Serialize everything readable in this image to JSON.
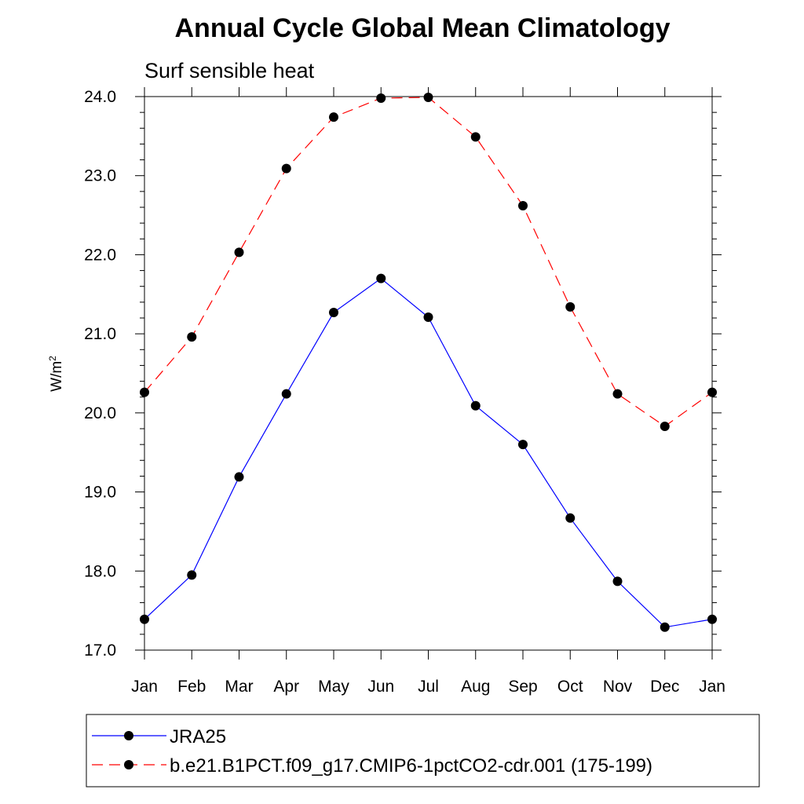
{
  "chart_data": {
    "type": "line",
    "title": "Annual Cycle Global Mean Climatology",
    "subtitle": "Surf sensible heat",
    "ylabel": "W/m",
    "ylabel_superscript": "2",
    "xlabel": "",
    "categories": [
      "Jan",
      "Feb",
      "Mar",
      "Apr",
      "May",
      "Jun",
      "Jul",
      "Aug",
      "Sep",
      "Oct",
      "Nov",
      "Dec",
      "Jan"
    ],
    "ylim": [
      17.0,
      24.0
    ],
    "yticks": [
      "17.0",
      "18.0",
      "19.0",
      "20.0",
      "21.0",
      "22.0",
      "23.0",
      "24.0"
    ],
    "series": [
      {
        "name": "JRA25",
        "color": "#0000ff",
        "dash": "solid",
        "values": [
          17.39,
          17.95,
          19.19,
          20.24,
          21.27,
          21.7,
          21.21,
          20.09,
          19.6,
          18.67,
          17.87,
          17.29,
          17.39
        ]
      },
      {
        "name": "b.e21.B1PCT.f09_g17.CMIP6-1pctCO2-cdr.001 (175-199)",
        "color": "#ff0000",
        "dash": "dashed",
        "values": [
          20.26,
          20.96,
          22.03,
          23.09,
          23.74,
          23.98,
          23.99,
          23.49,
          22.62,
          21.34,
          20.24,
          19.83,
          20.26
        ]
      }
    ],
    "legend_position": "bottom"
  }
}
